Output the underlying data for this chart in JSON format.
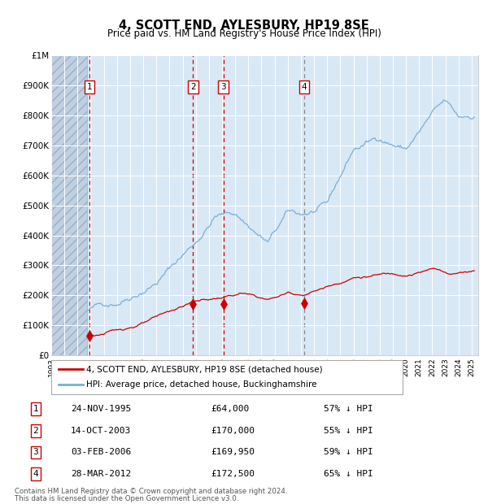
{
  "title": "4, SCOTT END, AYLESBURY, HP19 8SE",
  "subtitle": "Price paid vs. HM Land Registry's House Price Index (HPI)",
  "legend_line1": "4, SCOTT END, AYLESBURY, HP19 8SE (detached house)",
  "legend_line2": "HPI: Average price, detached house, Buckinghamshire",
  "footer_line1": "Contains HM Land Registry data © Crown copyright and database right 2024.",
  "footer_line2": "This data is licensed under the Open Government Licence v3.0.",
  "transactions": [
    {
      "num": 1,
      "date": "24-NOV-1995",
      "price": 64000,
      "hpi_pct": "57% ↓ HPI",
      "x_year": 1995.9
    },
    {
      "num": 2,
      "date": "14-OCT-2003",
      "price": 170000,
      "hpi_pct": "55% ↓ HPI",
      "x_year": 2003.8
    },
    {
      "num": 3,
      "date": "03-FEB-2006",
      "price": 169950,
      "hpi_pct": "59% ↓ HPI",
      "x_year": 2006.1
    },
    {
      "num": 4,
      "date": "28-MAR-2012",
      "price": 172500,
      "hpi_pct": "65% ↓ HPI",
      "x_year": 2012.25
    }
  ],
  "hpi_color": "#7bafd4",
  "price_color": "#cc0000",
  "vline_color_red": "#cc0000",
  "vline_color_gray": "#888888",
  "bg_color": "#d9e8f5",
  "hatch_color": "#c0d0e0",
  "ylim": [
    0,
    1000000
  ],
  "xlim_start": 1993.0,
  "xlim_end": 2025.5,
  "ylabel_ticks": [
    "£0",
    "£100K",
    "£200K",
    "£300K",
    "£400K",
    "£500K",
    "£600K",
    "£700K",
    "£800K",
    "£900K",
    "£1M"
  ],
  "ytick_values": [
    0,
    100000,
    200000,
    300000,
    400000,
    500000,
    600000,
    700000,
    800000,
    900000,
    1000000
  ],
  "hpi_start_year": 1995.75,
  "hpi_seed": 42,
  "price_seed": 123
}
